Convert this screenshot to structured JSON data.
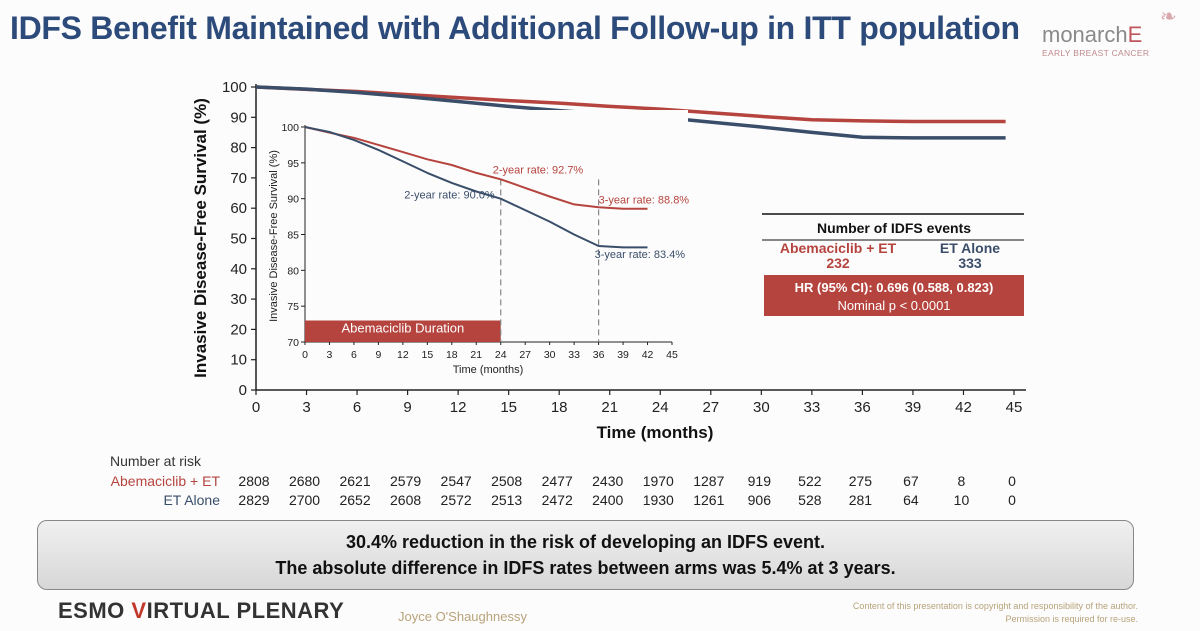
{
  "title": "IDFS Benefit Maintained with Additional Follow-up in ITT population",
  "logo": {
    "text_main": "monarch",
    "text_e": "E",
    "sub": "EARLY BREAST CANCER"
  },
  "colors": {
    "abema": "#b5443e",
    "et": "#3a4e6a",
    "title": "#2c4a7a",
    "hr_box": "#b5443e"
  },
  "chart_data": {
    "type": "line",
    "xlabel": "Time (months)",
    "ylabel": "Invasive Disease-Free Survival (%)",
    "xlim": [
      0,
      45
    ],
    "ylim": [
      0,
      100
    ],
    "xticks": [
      0,
      3,
      6,
      9,
      12,
      15,
      18,
      21,
      24,
      27,
      30,
      33,
      36,
      39,
      42,
      45
    ],
    "yticks": [
      0,
      10,
      20,
      30,
      40,
      50,
      60,
      70,
      80,
      90,
      100
    ],
    "grid": false,
    "series": [
      {
        "name": "Abemaciclib + ET",
        "color": "#b5443e",
        "x": [
          0,
          3,
          6,
          9,
          12,
          15,
          18,
          21,
          24,
          27,
          30,
          33,
          36,
          39,
          42,
          44.5
        ],
        "y": [
          100,
          99.2,
          98.5,
          97.5,
          96.5,
          95.5,
          94.7,
          93.6,
          92.7,
          91.5,
          90.3,
          89.2,
          88.8,
          88.6,
          88.6,
          88.6
        ]
      },
      {
        "name": "ET Alone",
        "color": "#3a4e6a",
        "x": [
          0,
          3,
          6,
          9,
          12,
          15,
          18,
          21,
          24,
          27,
          30,
          33,
          36,
          39,
          42,
          44.5
        ],
        "y": [
          100,
          99.3,
          98.2,
          96.8,
          95.2,
          93.6,
          92.2,
          91.0,
          90.0,
          88.4,
          86.8,
          85.0,
          83.4,
          83.2,
          83.2,
          83.2
        ]
      }
    ],
    "inset": {
      "xlabel": "Time (months)",
      "ylabel": "Invasive Disease-Free Survival (%)",
      "xlim": [
        0,
        45
      ],
      "ylim": [
        70,
        100
      ],
      "xticks": [
        0,
        3,
        6,
        9,
        12,
        15,
        18,
        21,
        24,
        27,
        30,
        33,
        36,
        39,
        42,
        45
      ],
      "yticks": [
        70,
        75,
        80,
        85,
        90,
        95,
        100
      ],
      "duration_label": "Abemaciclib Duration",
      "duration_months": [
        0,
        24
      ],
      "annotations": [
        {
          "text": "2-year rate: 92.7%",
          "series": "Abemaciclib + ET",
          "x": 24,
          "y": 92.7
        },
        {
          "text": "3-year rate: 88.8%",
          "series": "Abemaciclib + ET",
          "x": 36,
          "y": 88.8
        },
        {
          "text": "2-year rate: 90.0%",
          "series": "ET Alone",
          "x": 24,
          "y": 90.0
        },
        {
          "text": "3-year rate: 83.4%",
          "series": "ET Alone",
          "x": 36,
          "y": 83.4
        }
      ]
    }
  },
  "events_box": {
    "title": "Number of IDFS events",
    "arm1_label": "Abemaciclib + ET",
    "arm1_value": "232",
    "arm2_label": "ET Alone",
    "arm2_value": "333",
    "hr": "HR (95% CI): 0.696 (0.588, 0.823)",
    "p": "Nominal p < 0.0001"
  },
  "risk_table": {
    "title": "Number at risk",
    "rows": [
      {
        "label": "Abemaciclib + ET",
        "color": "#b5443e",
        "values": [
          "2808",
          "2680",
          "2621",
          "2579",
          "2547",
          "2508",
          "2477",
          "2430",
          "1970",
          "1287",
          "919",
          "522",
          "275",
          "67",
          "8",
          "0"
        ]
      },
      {
        "label": "ET Alone",
        "color": "#3a4e6a",
        "values": [
          "2829",
          "2700",
          "2652",
          "2608",
          "2572",
          "2513",
          "2472",
          "2400",
          "1930",
          "1261",
          "906",
          "528",
          "281",
          "64",
          "10",
          "0"
        ]
      }
    ]
  },
  "banner": {
    "line1": "30.4% reduction in the risk of developing an IDFS event.",
    "line2": "The absolute difference in IDFS rates between arms was 5.4% at 3 years."
  },
  "footer": {
    "esmo_a": "ESMO ",
    "esmo_b": "V",
    "esmo_c": "IRTUAL PLENARY",
    "presenter": "Joyce O'Shaughnessy",
    "copy1": "Content of this presentation is copyright and responsibility of the author.",
    "copy2": "Permission is required for re-use."
  }
}
